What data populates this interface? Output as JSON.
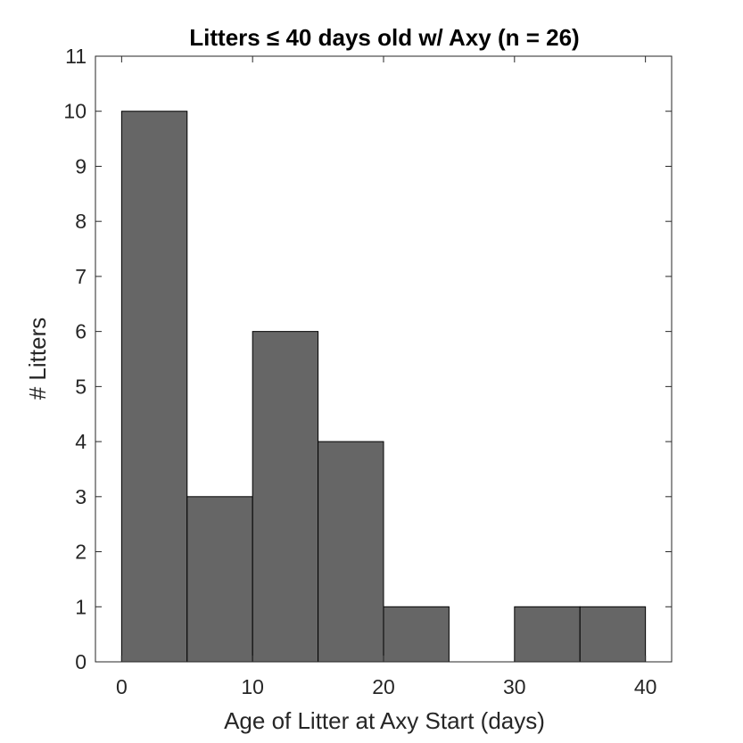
{
  "chart_data": {
    "type": "bar",
    "title": "Litters ≤ 40 days old w/ Axy (n = 26)",
    "xlabel": "Age of Litter at Axy Start (days)",
    "ylabel": "# Litters",
    "xlim": [
      -2,
      42
    ],
    "ylim": [
      0,
      11
    ],
    "xticks": [
      0,
      10,
      20,
      30,
      40
    ],
    "yticks": [
      0,
      1,
      2,
      3,
      4,
      5,
      6,
      7,
      8,
      9,
      10,
      11
    ],
    "bin_edges": [
      0,
      5,
      10,
      15,
      20,
      25,
      30,
      35,
      40
    ],
    "values": [
      10,
      3,
      6,
      4,
      1,
      0,
      1,
      1
    ],
    "bar_color": "#666666",
    "edge_color": "#000000",
    "grid": false,
    "legend": false
  }
}
